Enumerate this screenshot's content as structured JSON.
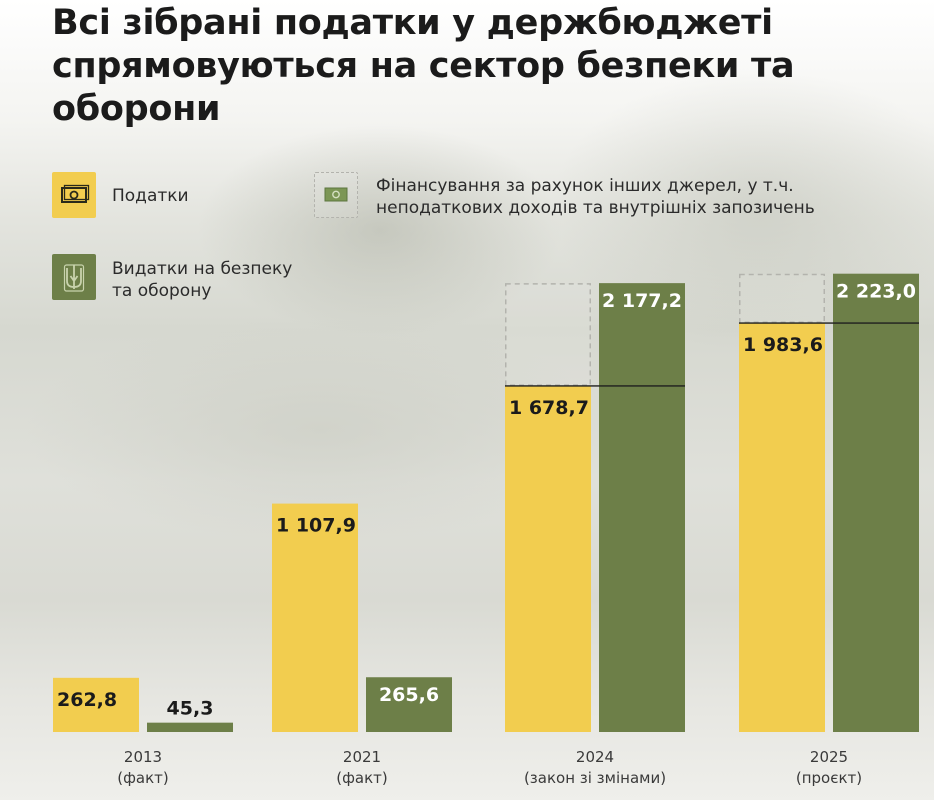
{
  "chart_data": {
    "type": "bar",
    "title": "Всі зібрані податки у держбюджеті спрямовуються на сектор безпеки та оборони",
    "categories": [
      {
        "year": "2013",
        "note": "(факт)"
      },
      {
        "year": "2021",
        "note": "(факт)"
      },
      {
        "year": "2024",
        "note": "(закон зі змінами)"
      },
      {
        "year": "2025",
        "note": "(проєкт)"
      }
    ],
    "series": [
      {
        "name": "Податки",
        "values": [
          262.8,
          1107.9,
          1678.7,
          1983.6
        ],
        "labels": [
          "262,8",
          "1 107,9",
          "1 678,7",
          "1 983,6"
        ],
        "color": "#f2cd4f"
      },
      {
        "name": "Видатки на безпеку та оборону",
        "values": [
          45.3,
          265.6,
          2177.2,
          2223.0
        ],
        "labels": [
          "45,3",
          "265,6",
          "2 177,2",
          "2 223,0"
        ],
        "color": "#6d7f48"
      }
    ],
    "other_sources": {
      "name": "Фінансування за рахунок інших джерел, у т.ч. неподаткових доходів та внутрішніх запозичень",
      "categories": [
        "2024",
        "2025"
      ]
    },
    "ylim": [
      0,
      2270
    ],
    "xlabel": "",
    "ylabel": ""
  },
  "legend": {
    "taxes_label": "Податки",
    "other_label_line1": "Фінансування за рахунок інших джерел, у т.ч.",
    "other_label_line2": "неподаткових доходів та внутрішніх запозичень",
    "defense_label_line1": "Видатки на безпеку",
    "defense_label_line2": "та оборону",
    "icons": {
      "taxes": "banknote-icon",
      "other": "banknote-icon",
      "defense": "trident-icon"
    }
  },
  "colors": {
    "taxes": "#f2cd4f",
    "defense": "#6d7f48",
    "text_dark": "#1b1b1b",
    "defense_label": "#ffffff",
    "dashed": "#b3b3ad"
  }
}
